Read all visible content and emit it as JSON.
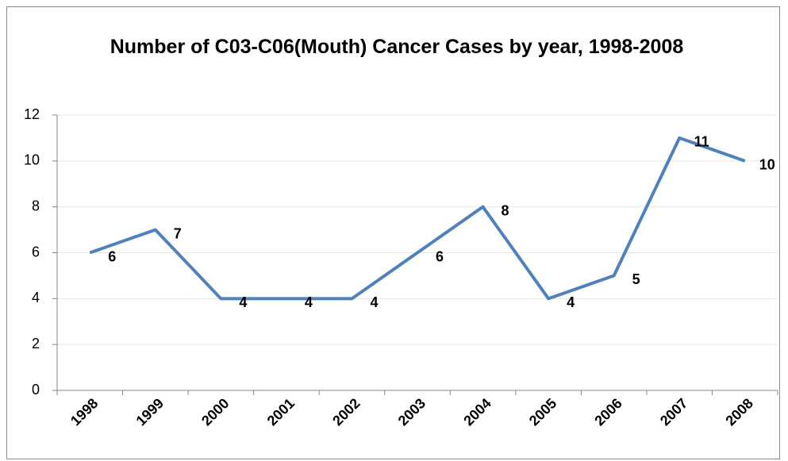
{
  "chart_data": {
    "type": "line",
    "title": "Number of C03-C06(Mouth) Cancer Cases by year, 1998-2008",
    "categories": [
      "1998",
      "1999",
      "2000",
      "2001",
      "2002",
      "2003",
      "2004",
      "2005",
      "2006",
      "2007",
      "2008"
    ],
    "values": [
      6,
      7,
      4,
      4,
      4,
      6,
      8,
      4,
      5,
      11,
      10
    ],
    "color": "#4f81bd",
    "ylim": [
      0,
      12
    ],
    "yticks": [
      0,
      2,
      4,
      6,
      8,
      10,
      12
    ],
    "grid": true
  }
}
